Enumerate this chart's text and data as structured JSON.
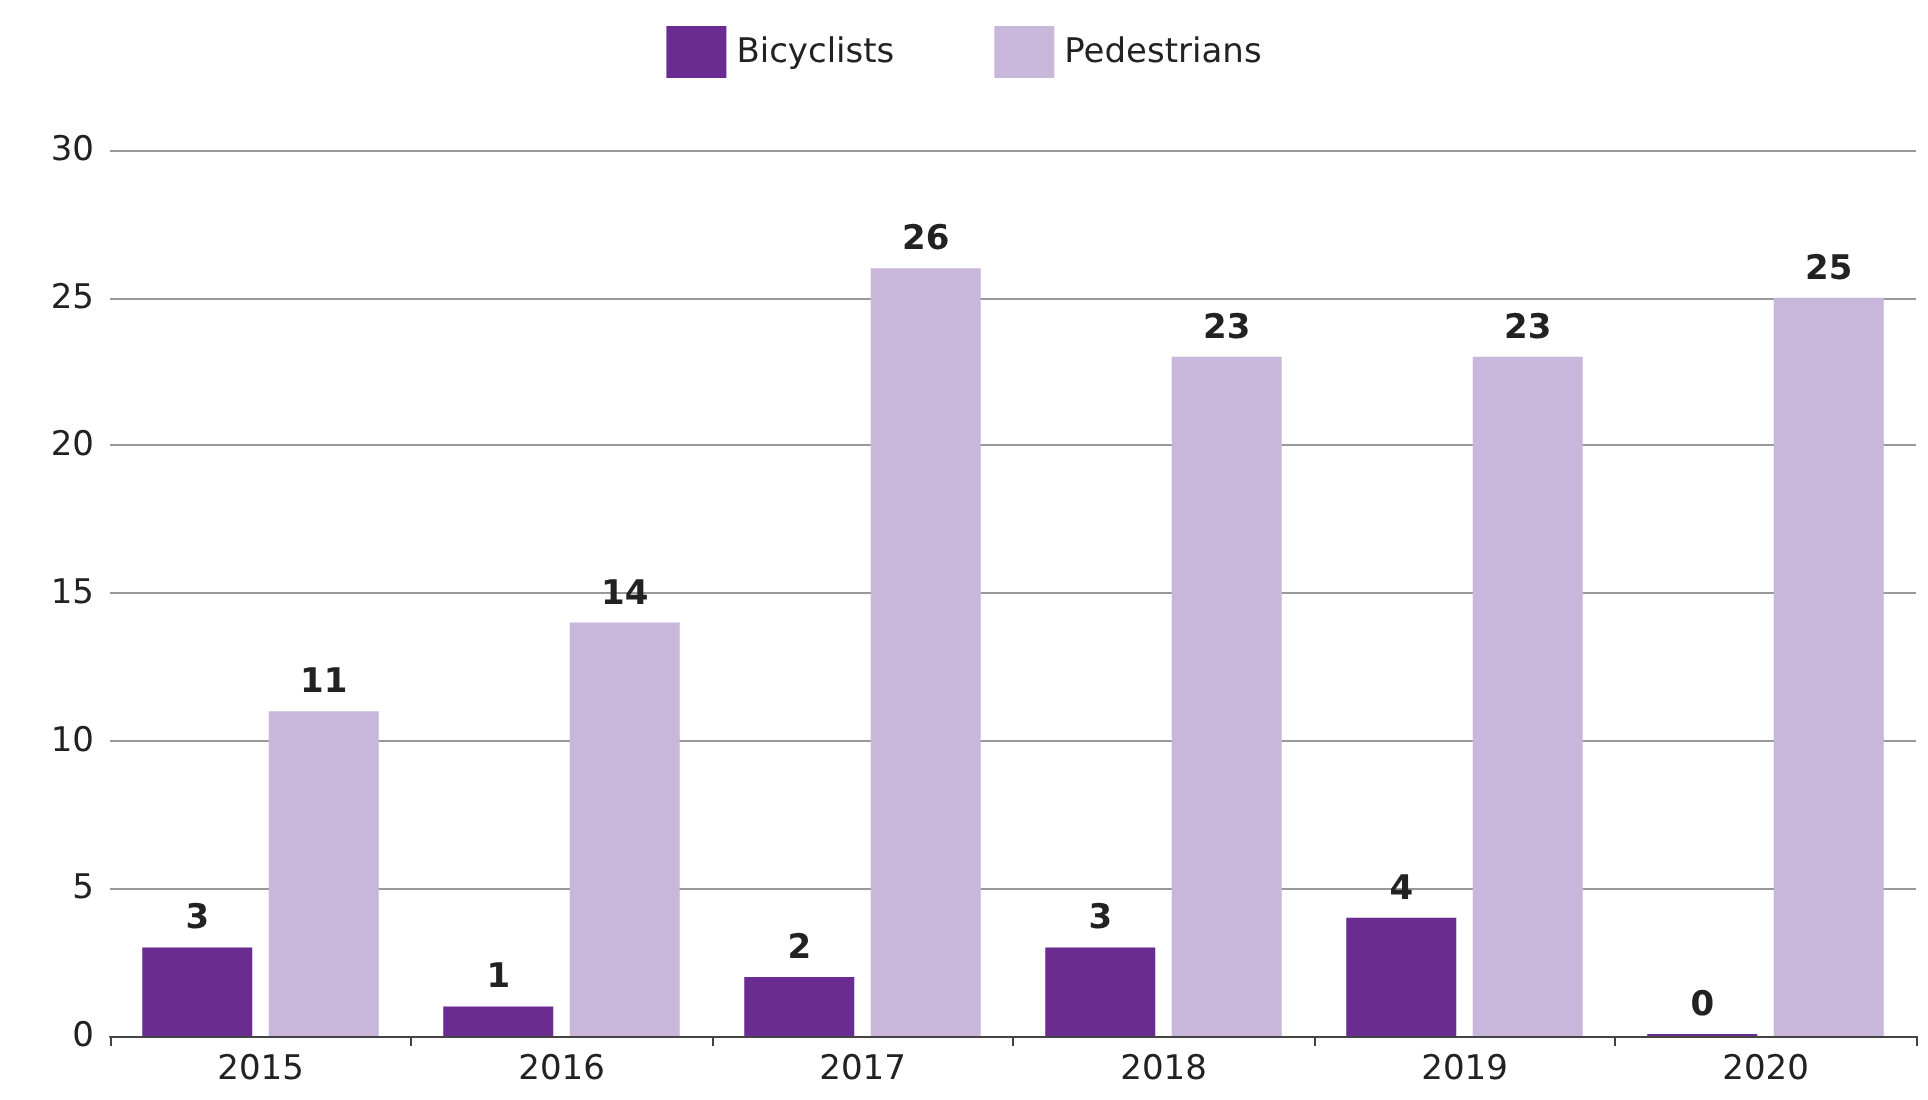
{
  "chart_data": {
    "type": "bar",
    "categories": [
      "2015",
      "2016",
      "2017",
      "2018",
      "2019",
      "2020"
    ],
    "series": [
      {
        "name": "Bicyclists",
        "color": "#6a2c91",
        "values": [
          3,
          1,
          2,
          3,
          4,
          0
        ]
      },
      {
        "name": "Pedestrians",
        "color": "#c8b7db",
        "values": [
          11,
          14,
          26,
          23,
          23,
          25
        ]
      }
    ],
    "ylim": [
      0,
      30
    ],
    "yticks": [
      0,
      5,
      10,
      15,
      20,
      25,
      30
    ],
    "grid": "y",
    "legend": "top",
    "data_labels": true
  }
}
